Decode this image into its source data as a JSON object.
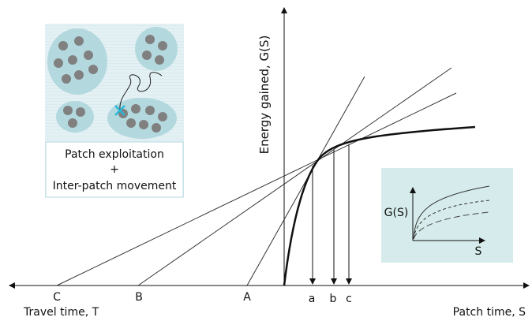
{
  "axes": {
    "y_label": "Energy gained, G(S)",
    "x_left_label": "Travel time, T",
    "x_right_label": "Patch time, S"
  },
  "travel_points": [
    "C",
    "B",
    "A"
  ],
  "patch_points": [
    "a",
    "b",
    "c"
  ],
  "inset": {
    "lines": [
      "Patch exploitation",
      "+",
      "Inter-patch movement"
    ]
  },
  "mini_plot": {
    "y_label": "G(S)",
    "x_label": "S"
  }
}
